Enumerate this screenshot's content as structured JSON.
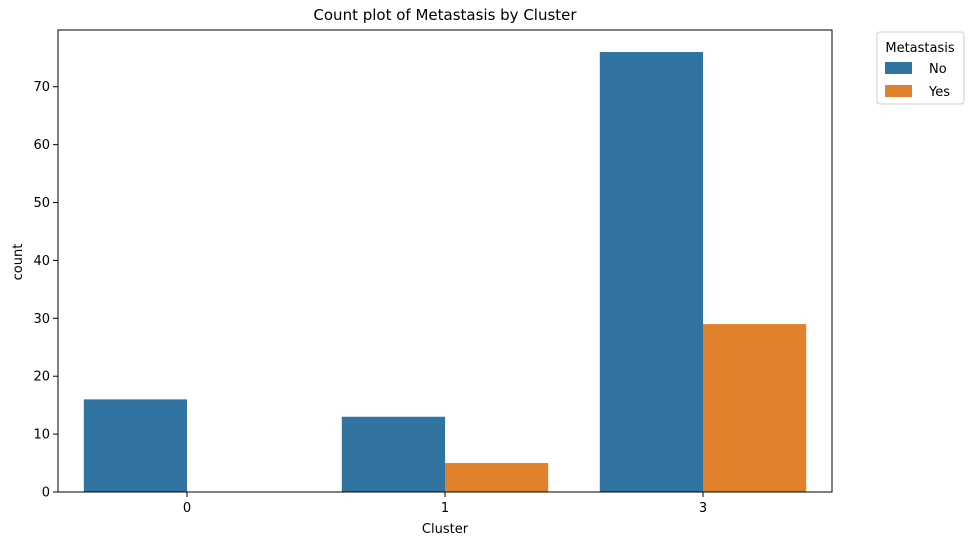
{
  "chart_data": {
    "type": "bar",
    "title": "Count plot of Metastasis by Cluster",
    "xlabel": "Cluster",
    "ylabel": "count",
    "categories": [
      "0",
      "1",
      "3"
    ],
    "series": [
      {
        "name": "No",
        "values": [
          16,
          13,
          76
        ],
        "color": "#3274a1"
      },
      {
        "name": "Yes",
        "values": [
          0,
          5,
          29
        ],
        "color": "#e1812c"
      }
    ],
    "ylim": [
      0,
      79.8
    ],
    "yticks": [
      0,
      10,
      20,
      30,
      40,
      50,
      60,
      70
    ],
    "grid": false,
    "legend": {
      "title": "Metastasis",
      "placement": "outside-top-right"
    }
  }
}
